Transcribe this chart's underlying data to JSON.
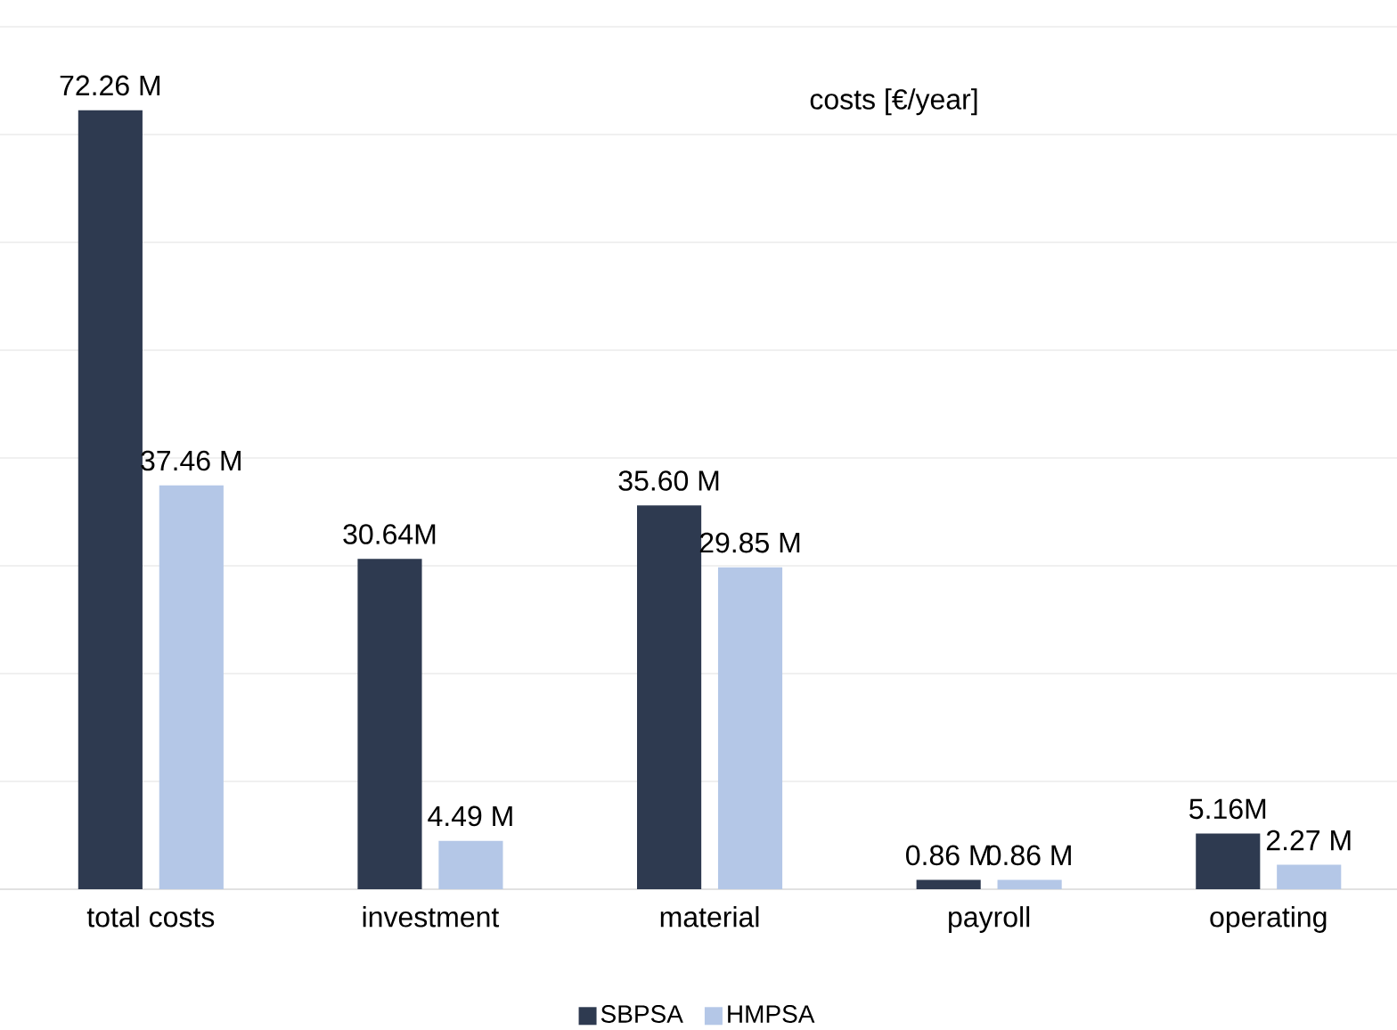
{
  "chart_data": {
    "type": "bar",
    "categories": [
      "total costs",
      "investment",
      "material",
      "payroll",
      "operating"
    ],
    "series": [
      {
        "name": "SBPSA",
        "color": "#2e3a50",
        "values": [
          72.26,
          30.64,
          35.6,
          0.86,
          5.16
        ],
        "value_labels": [
          "72.26 M",
          "30.64M",
          "35.60 M",
          "0.86 M",
          "5.16M"
        ]
      },
      {
        "name": "HMPSA",
        "color": "#b4c7e7",
        "values": [
          37.46,
          4.49,
          29.85,
          0.86,
          2.27
        ],
        "value_labels": [
          "37.46 M",
          "4.49 M",
          "29.85 M",
          "0.86 M",
          "2.27 M"
        ]
      }
    ],
    "ylim": [
      0,
      80
    ],
    "yticks": [
      {
        "value": 0,
        "label": null
      },
      {
        "value": 10,
        "label": null
      },
      {
        "value": 20,
        "label": null
      },
      {
        "value": 30,
        "label": null
      },
      {
        "value": 40,
        "label": null
      },
      {
        "value": 50,
        "label": null
      },
      {
        "value": 60,
        "label": null
      },
      {
        "value": 70,
        "label": null
      },
      {
        "value": 80,
        "label": null
      }
    ],
    "tick_labels": "x",
    "grid": "y",
    "legend": "bottom",
    "annotations": [
      "costs [€/year]"
    ]
  }
}
